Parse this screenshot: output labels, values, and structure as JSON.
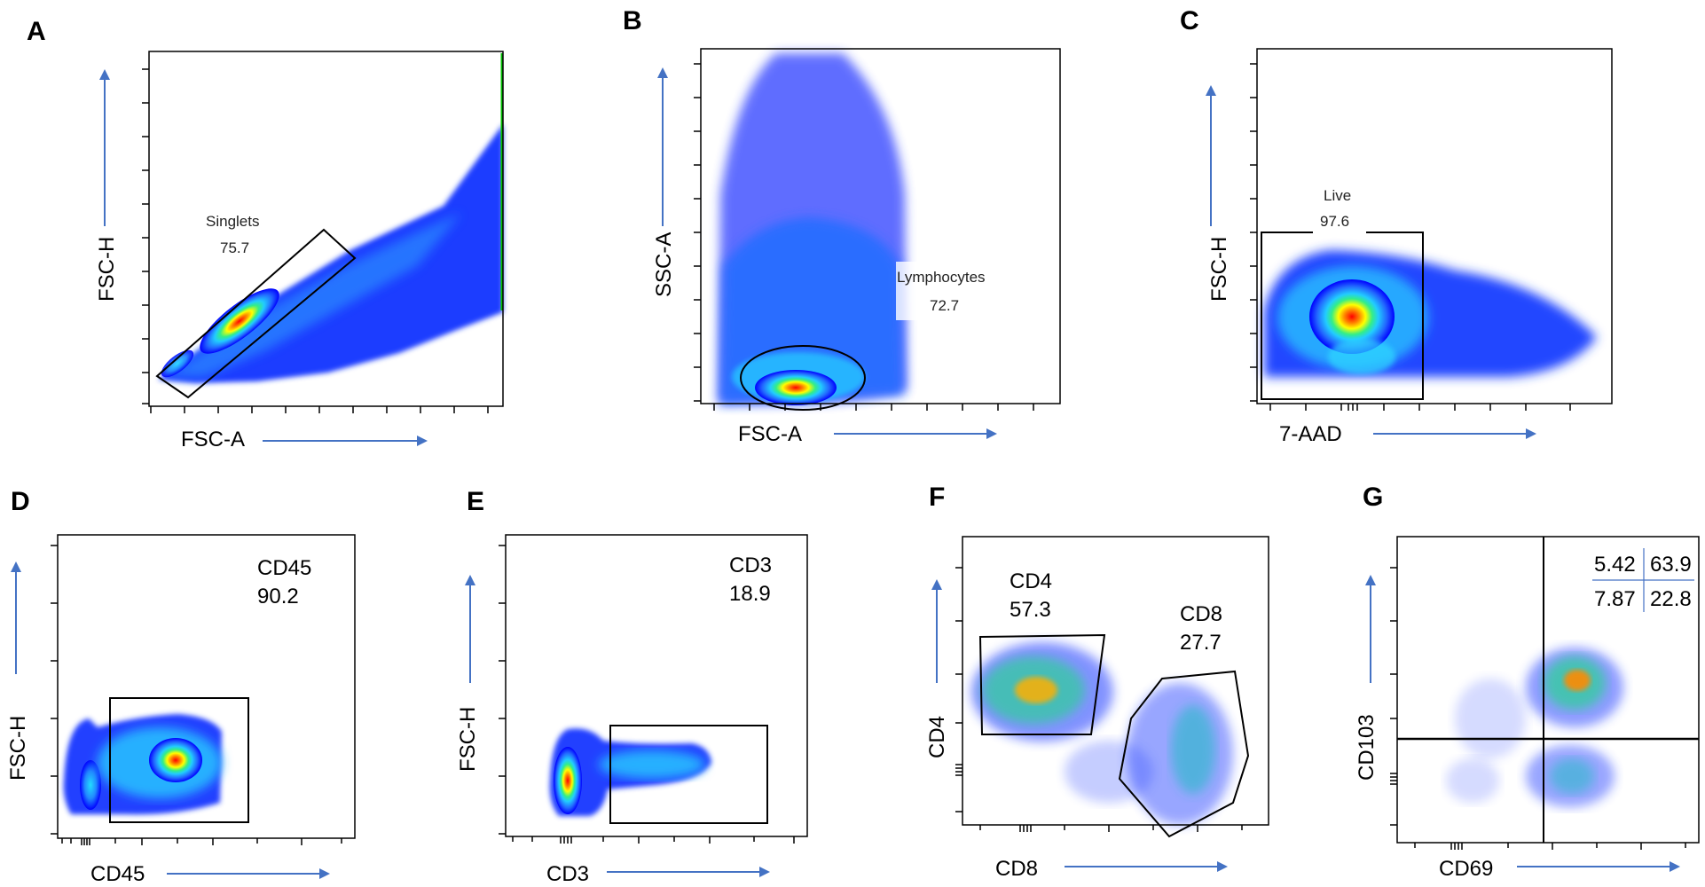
{
  "chart_data": [
    {
      "panel": "A",
      "type": "scatter",
      "xlabel": "FSC-A",
      "ylabel": "FSC-H",
      "gates": [
        {
          "name": "Singlets",
          "value": "75.7"
        }
      ],
      "grid": false
    },
    {
      "panel": "B",
      "type": "scatter",
      "xlabel": "FSC-A",
      "ylabel": "SSC-A",
      "gates": [
        {
          "name": "Lymphocytes",
          "value": "72.7"
        }
      ],
      "grid": false
    },
    {
      "panel": "C",
      "type": "scatter",
      "xlabel": "7-AAD",
      "ylabel": "FSC-H",
      "gates": [
        {
          "name": "Live",
          "value": "97.6"
        }
      ],
      "grid": false
    },
    {
      "panel": "D",
      "type": "scatter",
      "xlabel": "CD45",
      "ylabel": "FSC-H",
      "gates": [
        {
          "name": "CD45",
          "value": "90.2"
        }
      ],
      "grid": false
    },
    {
      "panel": "E",
      "type": "scatter",
      "xlabel": "CD3",
      "ylabel": "FSC-H",
      "gates": [
        {
          "name": "CD3",
          "value": "18.9"
        }
      ],
      "grid": false
    },
    {
      "panel": "F",
      "type": "scatter",
      "xlabel": "CD8",
      "ylabel": "CD4",
      "gates": [
        {
          "name": "CD4",
          "value": "57.3"
        },
        {
          "name": "CD8",
          "value": "27.7"
        }
      ],
      "grid": false
    },
    {
      "panel": "G",
      "type": "scatter",
      "xlabel": "CD69",
      "ylabel": "CD103",
      "quadrants": {
        "top_left": "5.42",
        "top_right": "63.9",
        "bottom_left": "7.87",
        "bottom_right": "22.8"
      },
      "grid": false
    }
  ],
  "colors": {
    "arrow": "#4472C4",
    "density_low": "#0000ff",
    "density_mid": "#00e5ff",
    "density_high": "#ffff00",
    "density_peak": "#ff0000"
  }
}
